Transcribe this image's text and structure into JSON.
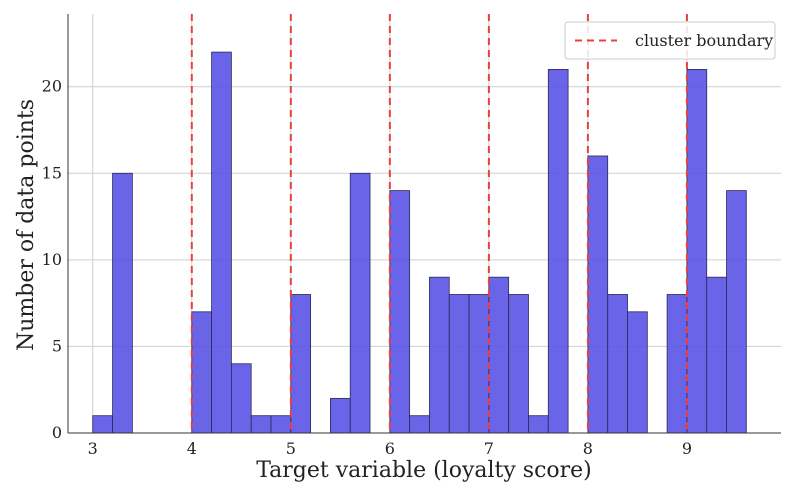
{
  "chart_data": {
    "type": "bar",
    "subtype": "histogram",
    "xlabel": "Target variable (loyalty score)",
    "ylabel": "Number of data points",
    "xlim": [
      2.75,
      9.95
    ],
    "ylim": [
      0,
      24.2
    ],
    "xticks": [
      3,
      4,
      5,
      6,
      7,
      8,
      9
    ],
    "yticks": [
      0,
      5,
      10,
      15,
      20
    ],
    "grid": "on (both axes)",
    "legend_placement": "top-right",
    "bar_color": "#5c57e6",
    "boundary_color": "#e8403e",
    "bin_width": 0.2,
    "bins": [
      {
        "x0": 3.0,
        "x1": 3.2,
        "count": 1
      },
      {
        "x0": 3.2,
        "x1": 3.4,
        "count": 15
      },
      {
        "x0": 4.0,
        "x1": 4.2,
        "count": 7
      },
      {
        "x0": 4.2,
        "x1": 4.4,
        "count": 22
      },
      {
        "x0": 4.4,
        "x1": 4.6,
        "count": 4
      },
      {
        "x0": 4.6,
        "x1": 4.8,
        "count": 1
      },
      {
        "x0": 4.8,
        "x1": 5.0,
        "count": 1
      },
      {
        "x0": 5.0,
        "x1": 5.2,
        "count": 8
      },
      {
        "x0": 5.4,
        "x1": 5.6,
        "count": 2
      },
      {
        "x0": 5.6,
        "x1": 5.8,
        "count": 15
      },
      {
        "x0": 6.0,
        "x1": 6.2,
        "count": 14
      },
      {
        "x0": 6.2,
        "x1": 6.4,
        "count": 1
      },
      {
        "x0": 6.4,
        "x1": 6.6,
        "count": 9
      },
      {
        "x0": 6.6,
        "x1": 6.8,
        "count": 8
      },
      {
        "x0": 6.8,
        "x1": 7.0,
        "count": 8
      },
      {
        "x0": 7.0,
        "x1": 7.2,
        "count": 9
      },
      {
        "x0": 7.2,
        "x1": 7.4,
        "count": 8
      },
      {
        "x0": 7.4,
        "x1": 7.6,
        "count": 1
      },
      {
        "x0": 7.6,
        "x1": 7.8,
        "count": 21
      },
      {
        "x0": 8.0,
        "x1": 8.2,
        "count": 16
      },
      {
        "x0": 8.2,
        "x1": 8.4,
        "count": 8
      },
      {
        "x0": 8.4,
        "x1": 8.6,
        "count": 7
      },
      {
        "x0": 8.8,
        "x1": 9.0,
        "count": 8
      },
      {
        "x0": 9.0,
        "x1": 9.2,
        "count": 21
      },
      {
        "x0": 9.2,
        "x1": 9.4,
        "count": 9
      },
      {
        "x0": 9.4,
        "x1": 9.6,
        "count": 14
      }
    ],
    "boundaries": [
      4,
      5,
      6,
      7,
      8,
      9
    ],
    "legend": [
      {
        "label": "cluster boundary",
        "style": "dashed line",
        "color": "#e8403e"
      }
    ]
  }
}
